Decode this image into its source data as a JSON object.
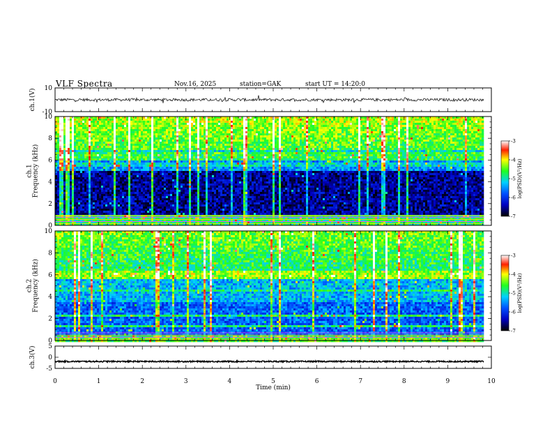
{
  "header": {
    "title": "VLF Spectra",
    "date": "Nov.16, 2025",
    "station": "station=GAK",
    "start": "start UT =  14:20:0"
  },
  "chart_data": [
    {
      "type": "line",
      "ylabel": "ch.1(V)",
      "ylim": [
        -10,
        10
      ],
      "yticks": [
        "10",
        "-10"
      ],
      "xlim": [
        0,
        10
      ],
      "series": [
        {
          "values_range": [
            -3.5,
            3.5
          ],
          "mean": 0
        }
      ]
    },
    {
      "type": "heatmap",
      "ylabel": "ch.1\nFrequency (kHz)",
      "ylim": [
        0,
        10
      ],
      "yticks": [
        "0",
        "2",
        "4",
        "6",
        "8",
        "10"
      ],
      "xlim": [
        0,
        10
      ],
      "colorbar": {
        "label": "log(PSD)(V²/Hz)",
        "range": [
          -7,
          -3
        ],
        "ticks": [
          "-3",
          "-4",
          "-5",
          "-6",
          "-7"
        ]
      }
    },
    {
      "type": "heatmap",
      "ylabel": "ch.2\nFrequency (kHz)",
      "ylim": [
        0,
        10
      ],
      "yticks": [
        "0",
        "2",
        "4",
        "6",
        "8",
        "10"
      ],
      "xlim": [
        0,
        10
      ],
      "colorbar": {
        "label": "log(PSD)(V²/Hz)",
        "range": [
          -7,
          -3
        ],
        "ticks": [
          "-3",
          "-4",
          "-5",
          "-6",
          "-7"
        ]
      }
    },
    {
      "type": "line",
      "ylabel": "ch.3(V)",
      "ylim": [
        -5,
        5
      ],
      "yticks": [
        "5",
        "0",
        "-5"
      ],
      "xlim": [
        0,
        10
      ],
      "series": [
        {
          "values_range": [
            -2.2,
            -1.6
          ],
          "mean": -1.9
        }
      ]
    }
  ],
  "xaxis": {
    "label": "Time (min)",
    "ticks": [
      "0",
      "1",
      "2",
      "3",
      "4",
      "5",
      "6",
      "7",
      "8",
      "9",
      "10"
    ]
  }
}
